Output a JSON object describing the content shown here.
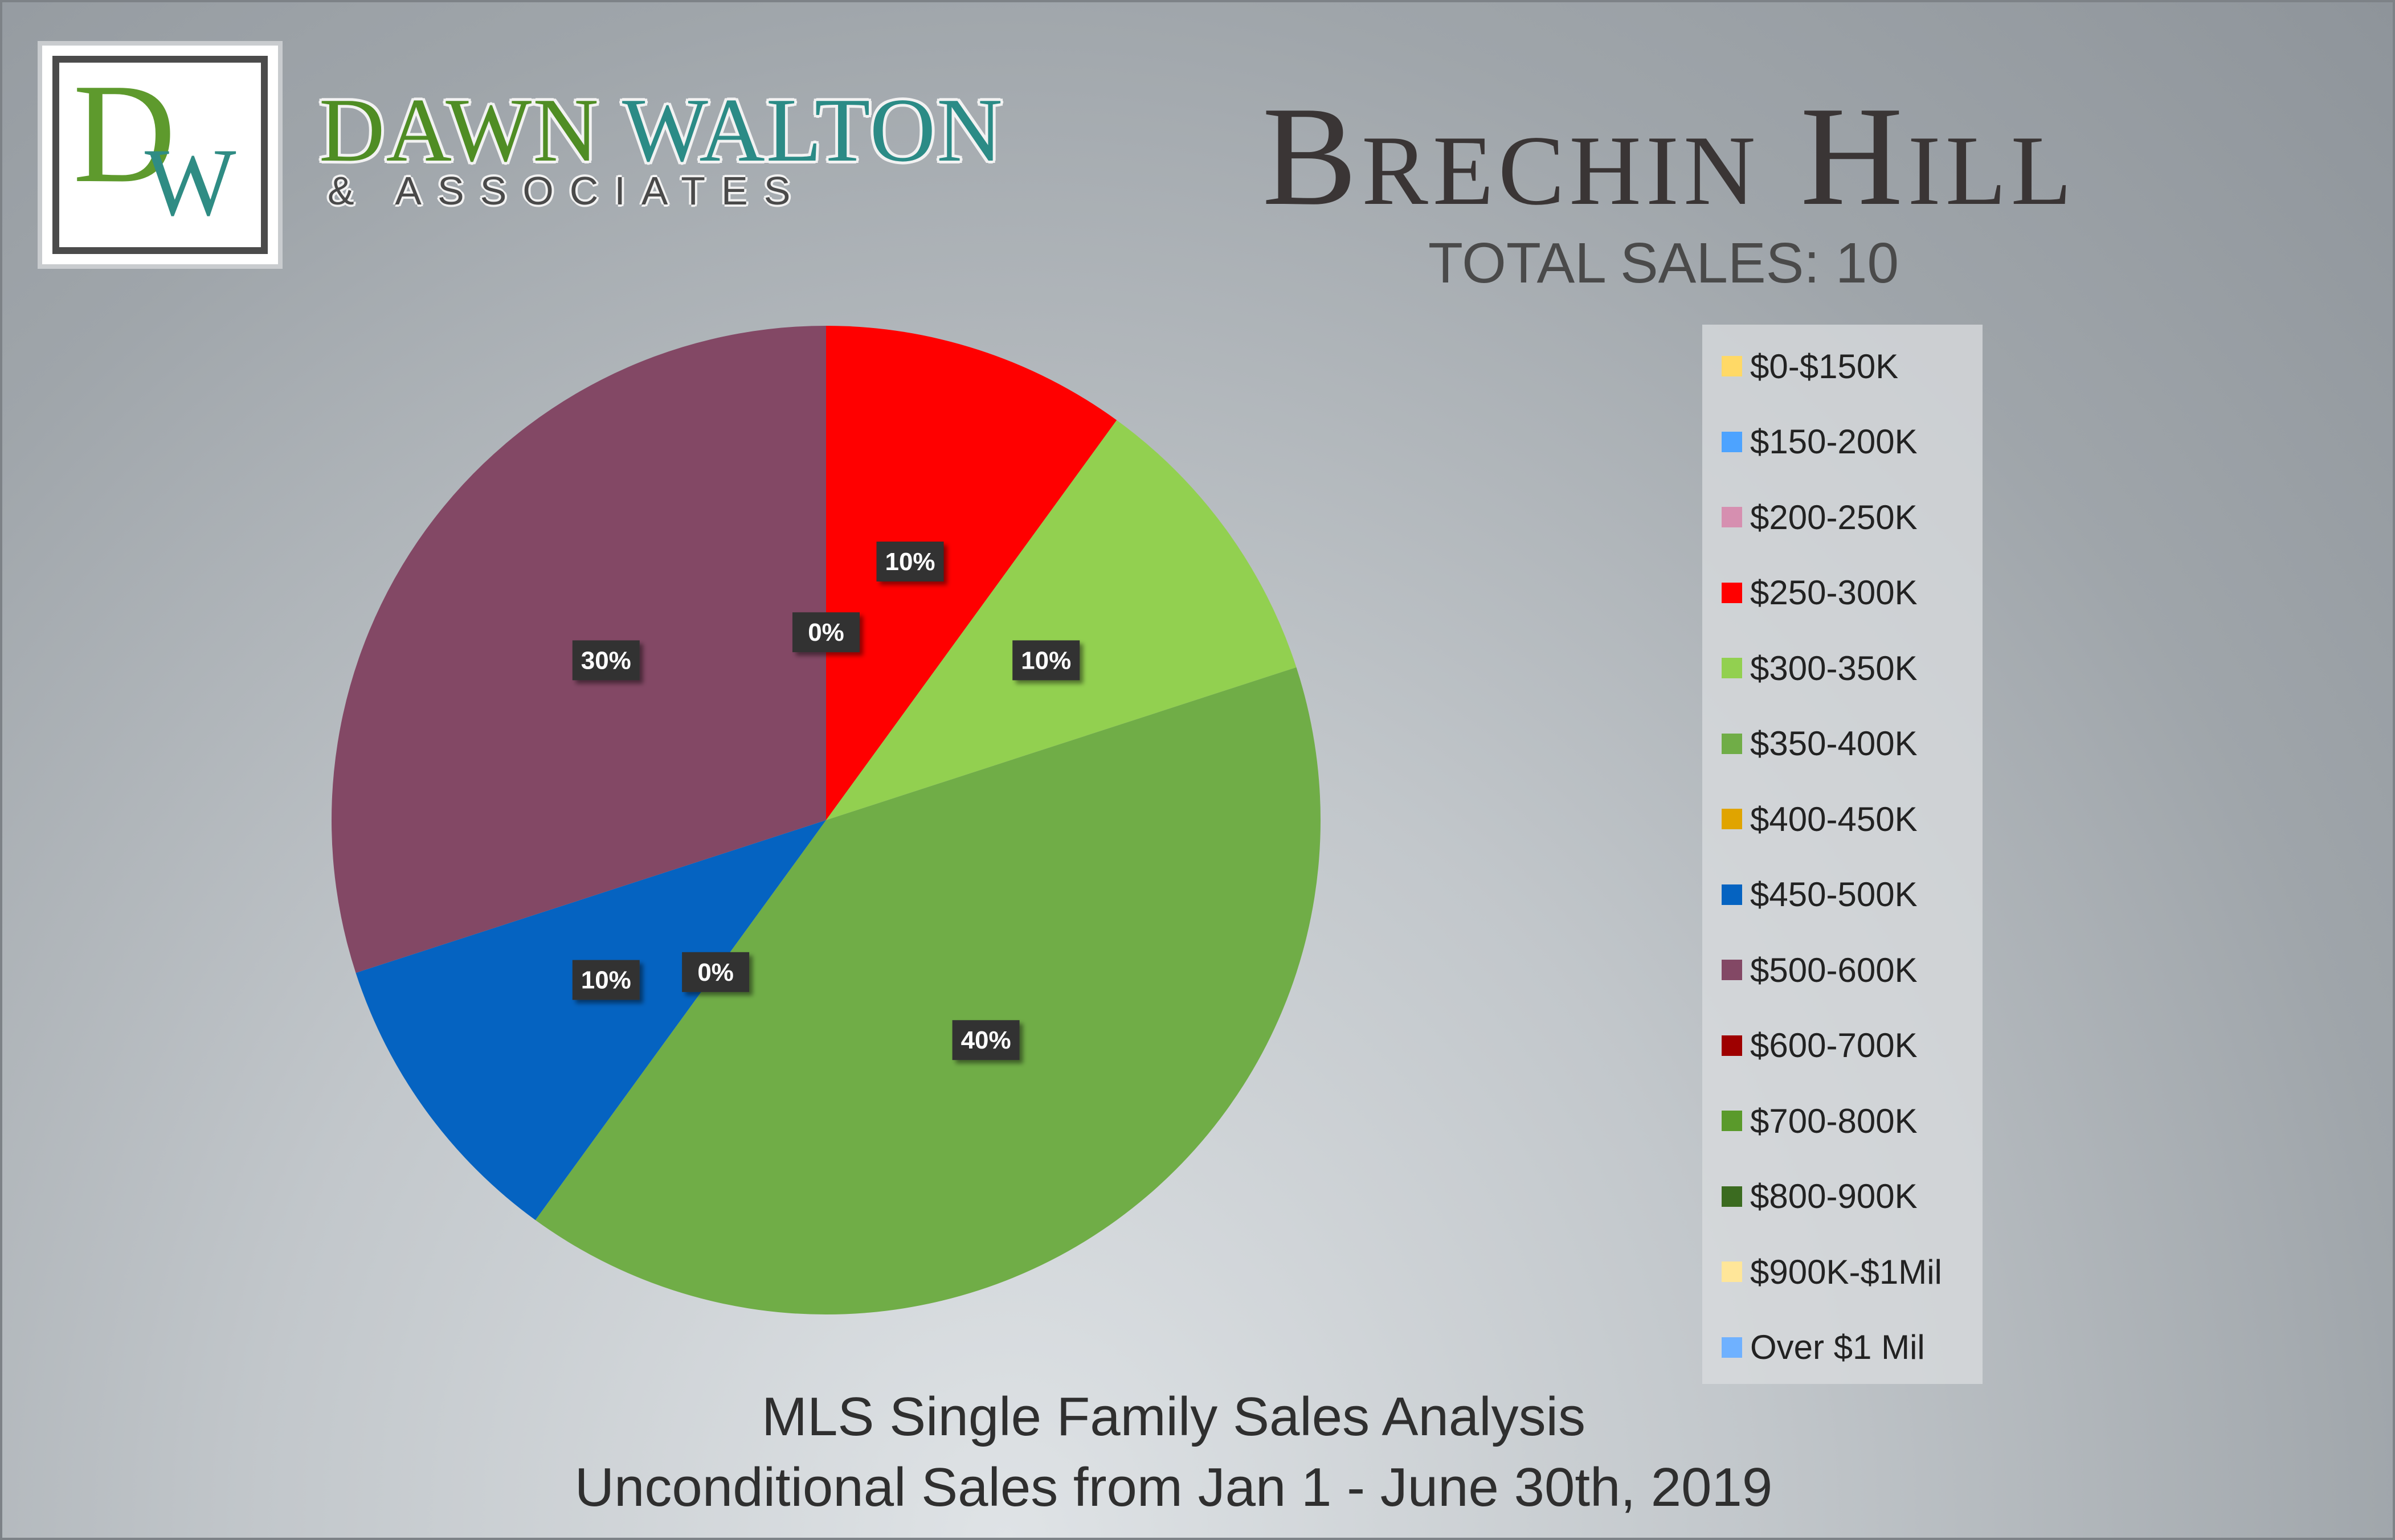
{
  "branding": {
    "logo_letter_1": "D",
    "logo_letter_2": "W",
    "name_part_1": "DAWN",
    "name_part_2": "WALTON",
    "tagline": "& ASSOCIATES"
  },
  "footer": {
    "line1": "MLS Single Family Sales Analysis",
    "line2": "Unconditional Sales from Jan 1 - June 30th, 2019"
  },
  "chart_data": {
    "type": "pie",
    "title": "Brechin Hill",
    "subtitle": "TOTAL SALES: 10",
    "legend_position": "right",
    "slices": [
      {
        "label": "$0-$150K",
        "value": 0,
        "color": "#ffd966"
      },
      {
        "label": "$150-200K",
        "value": 0,
        "color": "#4da3ff"
      },
      {
        "label": "$200-250K",
        "value": 0,
        "color": "#d68fb0"
      },
      {
        "label": "$250-300K",
        "value": 10,
        "data_label": "10%",
        "color": "#ff0000"
      },
      {
        "label": "$300-350K",
        "value": 10,
        "data_label": "10%",
        "color": "#92d050"
      },
      {
        "label": "$350-400K",
        "value": 40,
        "data_label": "40%",
        "color": "#70ad47"
      },
      {
        "label": "$400-450K",
        "value": 0,
        "data_label": "0%",
        "color": "#e0a400"
      },
      {
        "label": "$450-500K",
        "value": 10,
        "data_label": "10%",
        "color": "#0563c1"
      },
      {
        "label": "$500-600K",
        "value": 30,
        "data_label": "30%",
        "color": "#834865"
      },
      {
        "label": "$600-700K",
        "value": 0,
        "color": "#9e0000"
      },
      {
        "label": "$700-800K",
        "value": 0,
        "color": "#5a9a2b"
      },
      {
        "label": "$800-900K",
        "value": 0,
        "color": "#3b6b20"
      },
      {
        "label": "$900K-$1Mil",
        "value": 0,
        "data_label": "0%",
        "color": "#ffe699"
      },
      {
        "label": "Over $1 Mil",
        "value": 0,
        "color": "#6fb1ff"
      }
    ]
  }
}
